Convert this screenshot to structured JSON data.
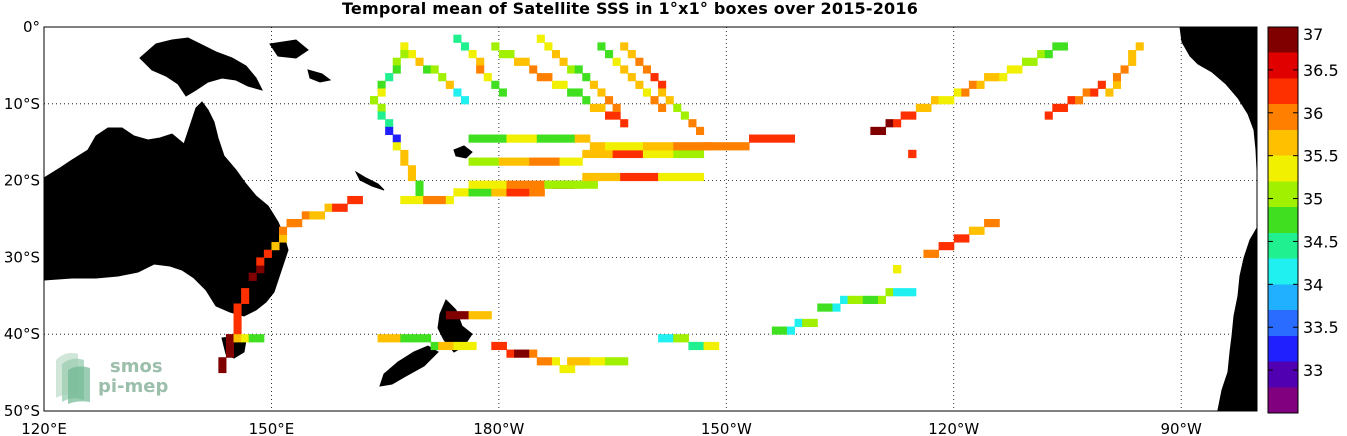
{
  "title": "Temporal mean of Satellite SSS in 1°x1° boxes over 2015-2016",
  "map": {
    "lon_range": [
      120,
      280
    ],
    "lat_range": [
      -50,
      0
    ],
    "lat_ticks": [
      {
        "value": 0,
        "label": "0°"
      },
      {
        "value": -10,
        "label": "10°S"
      },
      {
        "value": -20,
        "label": "20°S"
      },
      {
        "value": -30,
        "label": "30°S"
      },
      {
        "value": -40,
        "label": "40°S"
      },
      {
        "value": -50,
        "label": "50°S"
      }
    ],
    "lon_ticks": [
      {
        "value": 120,
        "label": "120°E"
      },
      {
        "value": 150,
        "label": "150°E"
      },
      {
        "value": 180,
        "label": "180°W"
      },
      {
        "value": 210,
        "label": "150°W"
      },
      {
        "value": 240,
        "label": "120°W"
      },
      {
        "value": 270,
        "label": "90°W"
      }
    ],
    "land_color": "#808080",
    "grid": true
  },
  "colorbar": {
    "min": 32.5,
    "max": 37,
    "ticks": [
      "37",
      "36.5",
      "36",
      "35.5",
      "35",
      "34.5",
      "34",
      "33.5",
      "33"
    ],
    "tick_values": [
      37,
      36.5,
      36,
      35.5,
      35,
      34.5,
      34,
      33.5,
      33
    ],
    "colors": [
      "#800080",
      "#5000b0",
      "#2020ff",
      "#2a6cff",
      "#20b0ff",
      "#20f0f0",
      "#20f090",
      "#40e020",
      "#a0f000",
      "#f0f000",
      "#ffc000",
      "#ff8000",
      "#ff3000",
      "#e00000",
      "#800000"
    ]
  },
  "logo": {
    "line1": "smos",
    "line2": "pi-mep"
  },
  "chart_data": {
    "type": "heatmap",
    "title": "Temporal mean of Satellite SSS in 1°x1° boxes over 2015-2016",
    "x_range": [
      120,
      280
    ],
    "y_range": [
      -50,
      0
    ],
    "unit_colorbar": [
      32.5,
      37
    ],
    "tracks": [
      {
        "from": [
          167,
          -2
        ],
        "to": [
          175,
          -9
        ],
        "sss": [
          35.2,
          35.8,
          34.6,
          35.0,
          35.6,
          34.3
        ]
      },
      {
        "from": [
          174,
          -1
        ],
        "to": [
          180,
          -8
        ],
        "sss": [
          34.5,
          35.2,
          35.8,
          36.0,
          35.3,
          34.8
        ]
      },
      {
        "from": [
          179,
          -2
        ],
        "to": [
          196,
          -12
        ],
        "sss": [
          35.0,
          35.6,
          36.0,
          35.4,
          34.9,
          35.5,
          36.2
        ]
      },
      {
        "from": [
          185,
          -1
        ],
        "to": [
          195,
          -10
        ],
        "sss": [
          35.3,
          35.8,
          35.1,
          34.7,
          35.5,
          35.9
        ]
      },
      {
        "from": [
          193,
          -2
        ],
        "to": [
          201,
          -10
        ],
        "sss": [
          34.9,
          35.4,
          35.8,
          35.6,
          35.3,
          35.9
        ]
      },
      {
        "from": [
          196,
          -2
        ],
        "to": [
          206,
          -13
        ],
        "sss": [
          35.5,
          35.9,
          36.2,
          35.7,
          35.1,
          36.0
        ]
      },
      {
        "from": [
          167,
          -3
        ],
        "to": [
          163,
          -9
        ],
        "sss": [
          35.0,
          34.6,
          34.4,
          34.9,
          35.3
        ]
      },
      {
        "from": [
          163,
          -9
        ],
        "to": [
          169,
          -21
        ],
        "sss": [
          35.0,
          34.4,
          33.2,
          35.3,
          35.8,
          35.5,
          34.9
        ]
      },
      {
        "from": [
          167,
          -22
        ],
        "to": [
          192,
          -20
        ],
        "sss": [
          35.4,
          36.0,
          35.2,
          34.8,
          35.6,
          36.3,
          35.9,
          36.9,
          35.1
        ]
      },
      {
        "from": [
          176,
          -17
        ],
        "to": [
          206,
          -16
        ],
        "sss": [
          35.0,
          35.5,
          35.9,
          35.3,
          35.7,
          36.1,
          35.4,
          35.0
        ]
      },
      {
        "from": [
          176,
          -14
        ],
        "to": [
          207,
          -15
        ],
        "sss": [
          34.8,
          35.3,
          34.9,
          35.6,
          35.2,
          35.8,
          36.0
        ]
      },
      {
        "from": [
          176,
          -20
        ],
        "to": [
          206,
          -19
        ],
        "sss": [
          35.3,
          35.9,
          35.1,
          35.6,
          36.2,
          35.4
        ]
      },
      {
        "from": [
          207,
          -15
        ],
        "to": [
          218,
          -14
        ],
        "sss": [
          35.9,
          36.3
        ]
      },
      {
        "from": [
          229,
          -13
        ],
        "to": [
          254,
          -2
        ],
        "sss": [
          36.9,
          36.3,
          35.7,
          35.4,
          35.9,
          35.5,
          35.2,
          35.0,
          34.8
        ]
      },
      {
        "from": [
          252,
          -11
        ],
        "to": [
          259,
          -7
        ],
        "sss": [
          36.2,
          36.3,
          36.0,
          36.1
        ]
      },
      {
        "from": [
          260,
          -8
        ],
        "to": [
          264,
          -2
        ],
        "sss": [
          35.6,
          36.0,
          35.8
        ]
      },
      {
        "from": [
          234,
          -16
        ],
        "to": [
          234,
          -16
        ],
        "sss": [
          36.1
        ]
      },
      {
        "from": [
          143,
          -44
        ],
        "to": [
          146,
          -34
        ],
        "sss": [
          36.9,
          36.2,
          36.3
        ]
      },
      {
        "from": [
          147,
          -32
        ],
        "to": [
          152,
          -25
        ],
        "sss": [
          37.0,
          36.4,
          35.8,
          35.9
        ]
      },
      {
        "from": [
          152,
          -25
        ],
        "to": [
          161,
          -22
        ],
        "sss": [
          35.9,
          35.8,
          36.3
        ]
      },
      {
        "from": [
          144,
          -40
        ],
        "to": [
          148,
          -40
        ],
        "sss": [
          36.9,
          35.6,
          35.2,
          34.8
        ]
      },
      {
        "from": [
          164,
          -40
        ],
        "to": [
          176,
          -41
        ],
        "sss": [
          35.5,
          34.8,
          34.9,
          35.6,
          35.3
        ]
      },
      {
        "from": [
          173,
          -37
        ],
        "to": [
          178,
          -37
        ],
        "sss": [
          36.9,
          35.6
        ]
      },
      {
        "from": [
          179,
          -41
        ],
        "to": [
          189,
          -44
        ],
        "sss": [
          36.1,
          36.9,
          35.9,
          35.3
        ]
      },
      {
        "from": [
          189,
          -43
        ],
        "to": [
          196,
          -43
        ],
        "sss": [
          35.8,
          35.3,
          35.1
        ]
      },
      {
        "from": [
          201,
          -40
        ],
        "to": [
          208,
          -41
        ],
        "sss": [
          34.2,
          35.0,
          34.5,
          35.3
        ]
      },
      {
        "from": [
          216,
          -39
        ],
        "to": [
          221,
          -38
        ],
        "sss": [
          34.9,
          34.2,
          35.0
        ]
      },
      {
        "from": [
          222,
          -36
        ],
        "to": [
          234,
          -34
        ],
        "sss": [
          34.7,
          34.2,
          35.1,
          34.6,
          35.0,
          34.3
        ]
      },
      {
        "from": [
          236,
          -29
        ],
        "to": [
          245,
          -25
        ],
        "sss": [
          36.0,
          36.1,
          36.3,
          35.6,
          35.9
        ]
      },
      {
        "from": [
          232,
          -31
        ],
        "to": [
          232,
          -31
        ],
        "sss": [
          35.4
        ]
      }
    ]
  }
}
